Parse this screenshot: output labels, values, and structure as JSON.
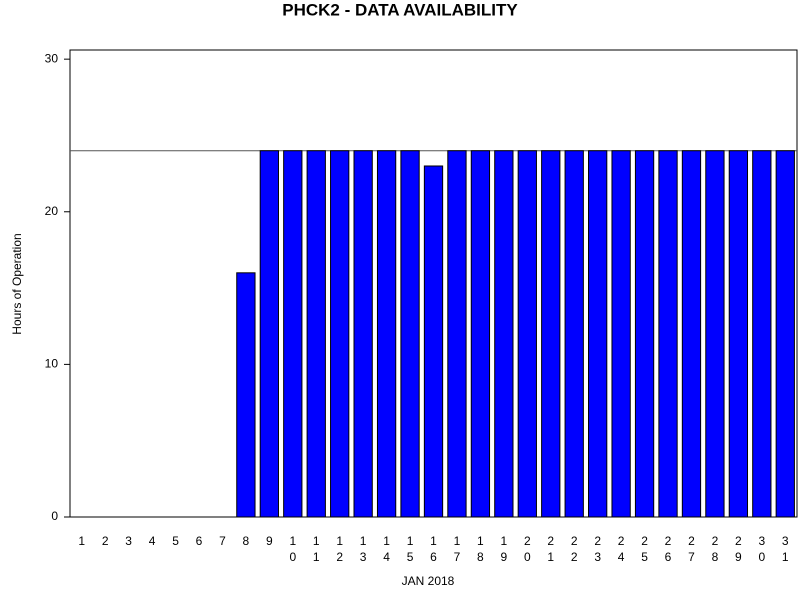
{
  "chart_data": {
    "type": "bar",
    "title": "PHCK2 - DATA AVAILABILITY",
    "x_label": "JAN 2018",
    "y_label": "Hours of Operation",
    "categories": [
      "1",
      "2",
      "3",
      "4",
      "5",
      "6",
      "7",
      "8",
      "9",
      "10",
      "11",
      "12",
      "13",
      "14",
      "15",
      "16",
      "17",
      "18",
      "19",
      "20",
      "21",
      "22",
      "23",
      "24",
      "25",
      "26",
      "27",
      "28",
      "29",
      "30",
      "31"
    ],
    "values": [
      0,
      0,
      0,
      0,
      0,
      0,
      0,
      16,
      24,
      24,
      24,
      24,
      24,
      24,
      24,
      23,
      24,
      24,
      24,
      24,
      24,
      24,
      24,
      24,
      24,
      24,
      24,
      24,
      24,
      24,
      24
    ],
    "color": "#0000ff",
    "ylim": [
      0,
      30.6
    ],
    "yticks": [
      0,
      10,
      20,
      30
    ],
    "reference_line": 24
  }
}
